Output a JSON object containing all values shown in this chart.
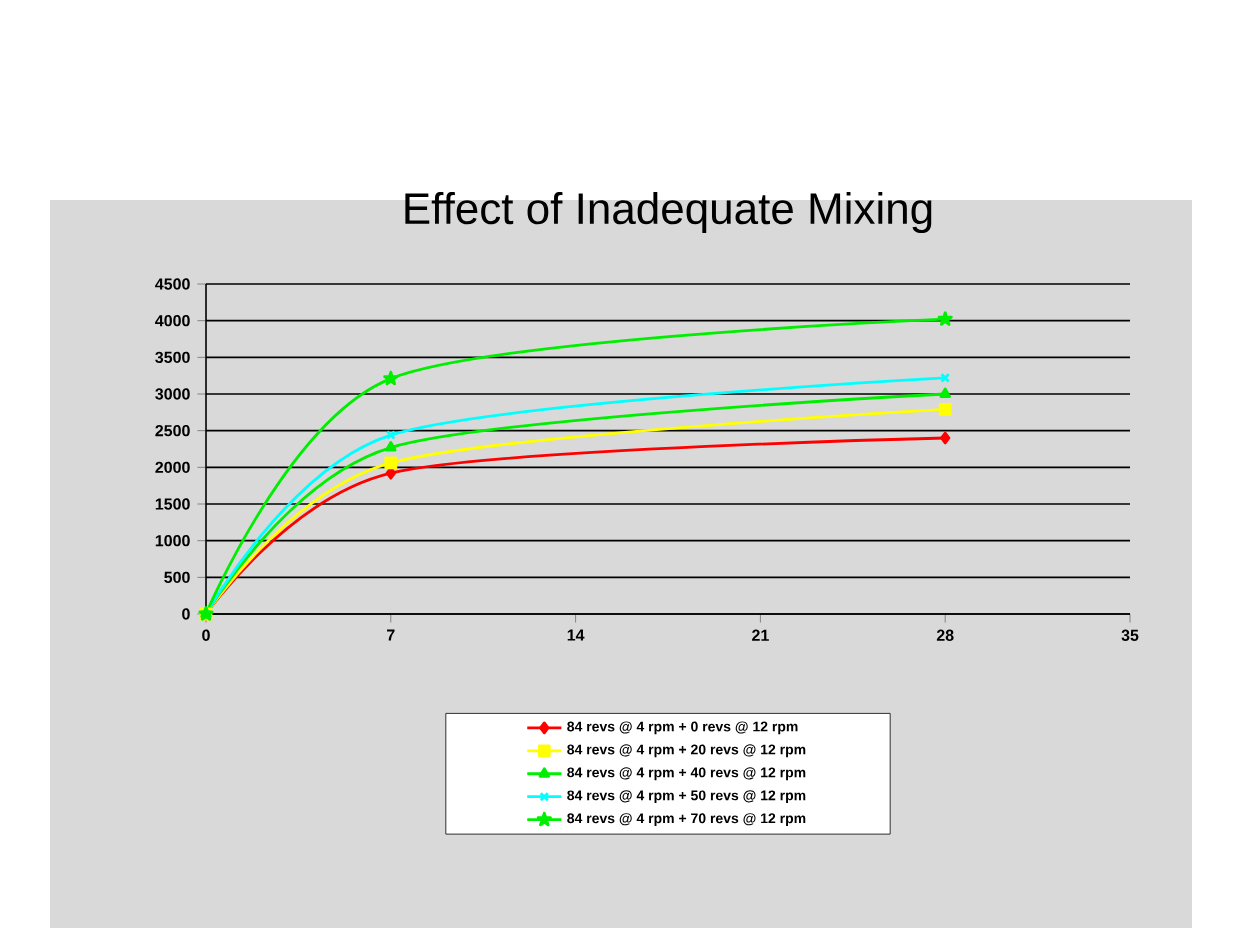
{
  "chart_data": {
    "type": "line",
    "title": "Effect of Inadequate Mixing",
    "x": [
      0,
      7,
      28
    ],
    "xlim": [
      0,
      35
    ],
    "xticks": [
      0,
      7,
      14,
      21,
      28,
      35
    ],
    "ylim": [
      0,
      4500
    ],
    "yticks": [
      0,
      500,
      1000,
      1500,
      2000,
      2500,
      3000,
      3500,
      4000,
      4500
    ],
    "grid": "y",
    "legend": "bottom",
    "series": [
      {
        "name": "84 revs @ 4 rpm +   0 revs @ 12 rpm",
        "color": "#ff0000",
        "marker": "diamond",
        "values": [
          0,
          1920,
          2400
        ]
      },
      {
        "name": "84 revs @ 4 rpm + 20 revs @ 12 rpm",
        "color": "#ffff00",
        "marker": "square",
        "values": [
          0,
          2060,
          2790
        ]
      },
      {
        "name": "84 revs @ 4 rpm + 40 revs @ 12 rpm",
        "color": "#00ee00",
        "marker": "triangle",
        "values": [
          0,
          2270,
          3000
        ]
      },
      {
        "name": "84 revs @ 4 rpm + 50 revs @ 12 rpm",
        "color": "#00ffff",
        "marker": "cross",
        "values": [
          0,
          2440,
          3220
        ]
      },
      {
        "name": "84 revs @ 4 rpm + 70 revs @ 12 rpm",
        "color": "#00ee00",
        "marker": "star",
        "values": [
          0,
          3210,
          4020
        ]
      }
    ]
  }
}
